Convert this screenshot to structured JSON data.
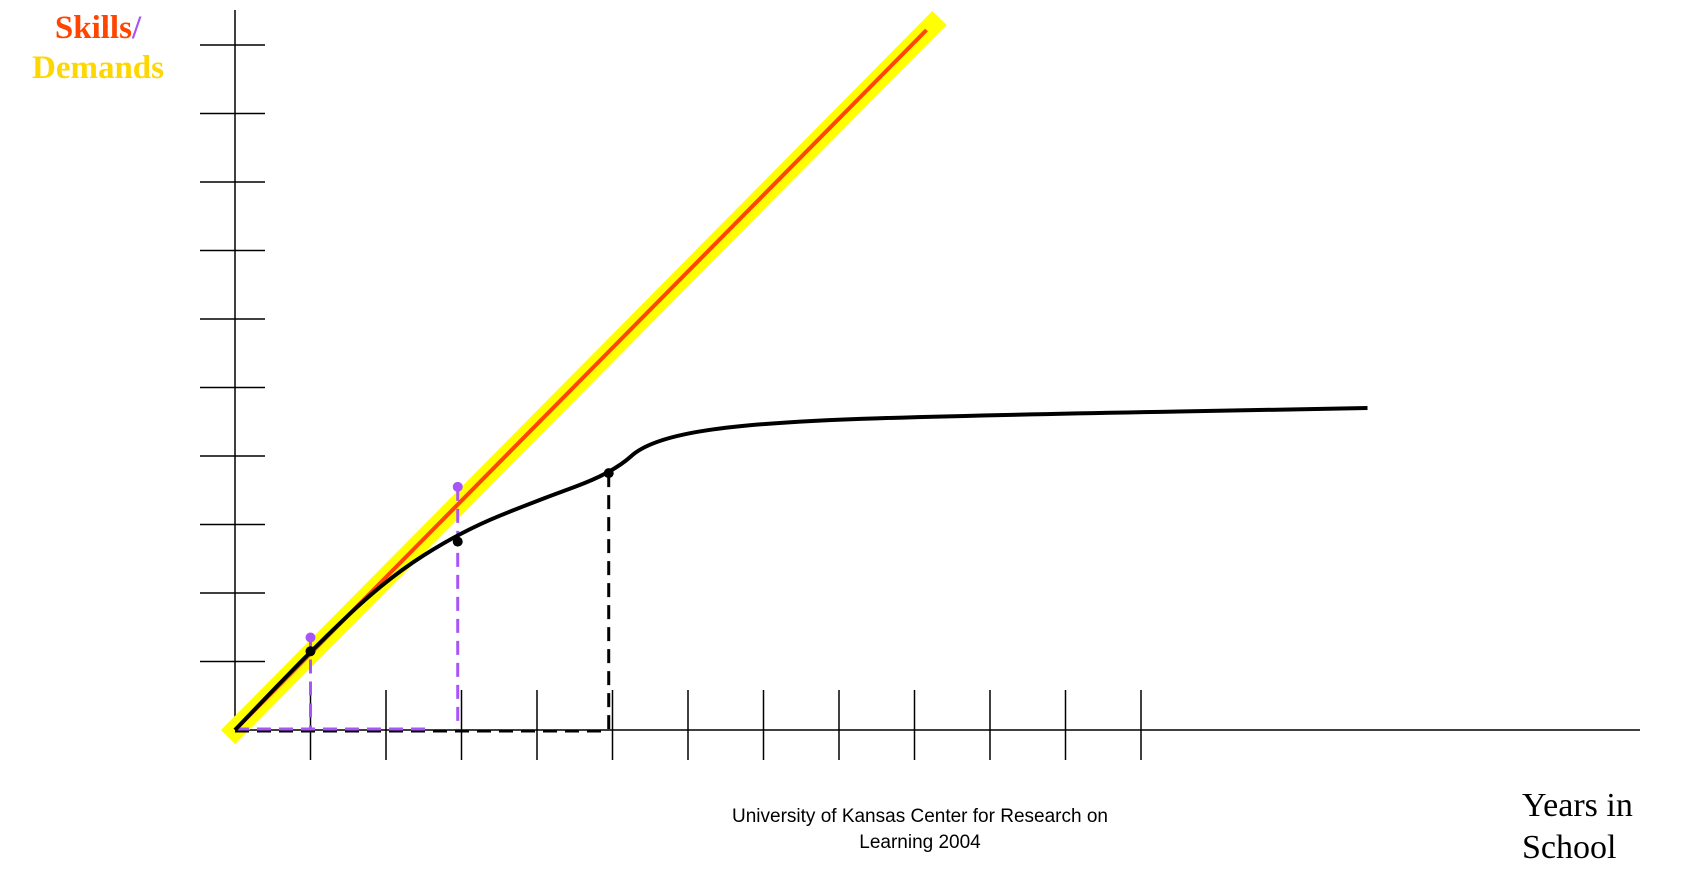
{
  "chart_data": {
    "type": "line",
    "ylabel": {
      "part1": "Skills",
      "slash": "/",
      "part2": "Demands"
    },
    "xlabel": "Years in School",
    "x_ticks_count": 12,
    "y_ticks_count": 11,
    "xlim": [
      0,
      17
    ],
    "ylim": [
      0,
      10
    ],
    "series": [
      {
        "color": "#ff4500",
        "highlight": "#ffff00",
        "points": [
          [
            0,
            0
          ],
          [
            9,
            10
          ]
        ]
      },
      {
        "color": "#000000",
        "points": [
          [
            0,
            0
          ],
          [
            1,
            1.15
          ],
          [
            2,
            2.2
          ],
          [
            3,
            2.9
          ],
          [
            4,
            3.35
          ],
          [
            5,
            3.75
          ],
          [
            5.5,
            4.25
          ],
          [
            7,
            4.5
          ],
          [
            10,
            4.6
          ],
          [
            15,
            4.7
          ]
        ]
      }
    ],
    "markers": [
      {
        "x": 1,
        "y": 1.35,
        "color": "#a855f7"
      },
      {
        "x": 2.95,
        "y": 3.55,
        "color": "#a855f7"
      },
      {
        "x": 1,
        "y": 1.15,
        "color": "#000000"
      },
      {
        "x": 2.95,
        "y": 2.75,
        "color": "#000000"
      },
      {
        "x": 4.95,
        "y": 3.75,
        "color": "#000000"
      }
    ],
    "dropdowns": [
      {
        "x": 1,
        "y": 1.35,
        "color": "#a855f7"
      },
      {
        "x": 2.95,
        "y": 3.55,
        "color": "#a855f7"
      },
      {
        "x": 4.95,
        "y": 3.75,
        "color": "#000000"
      }
    ],
    "colors": {
      "skills": "#ff4500",
      "slash": "#a855f7",
      "demands": "#ffd700"
    }
  },
  "credit": {
    "line1": "University of Kansas Center for Research on",
    "line2": "Learning  2004"
  }
}
